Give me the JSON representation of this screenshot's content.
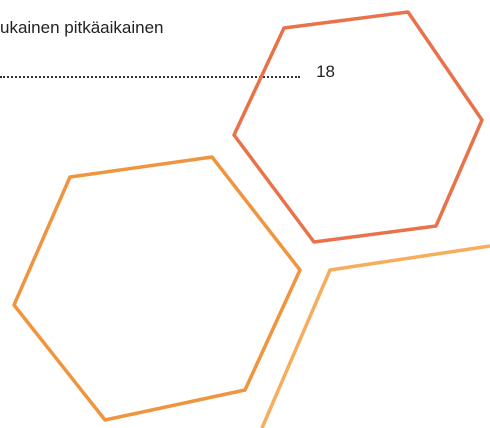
{
  "toc_entry": {
    "text": "ukainen pitkäaikainen",
    "page": 18
  }
}
